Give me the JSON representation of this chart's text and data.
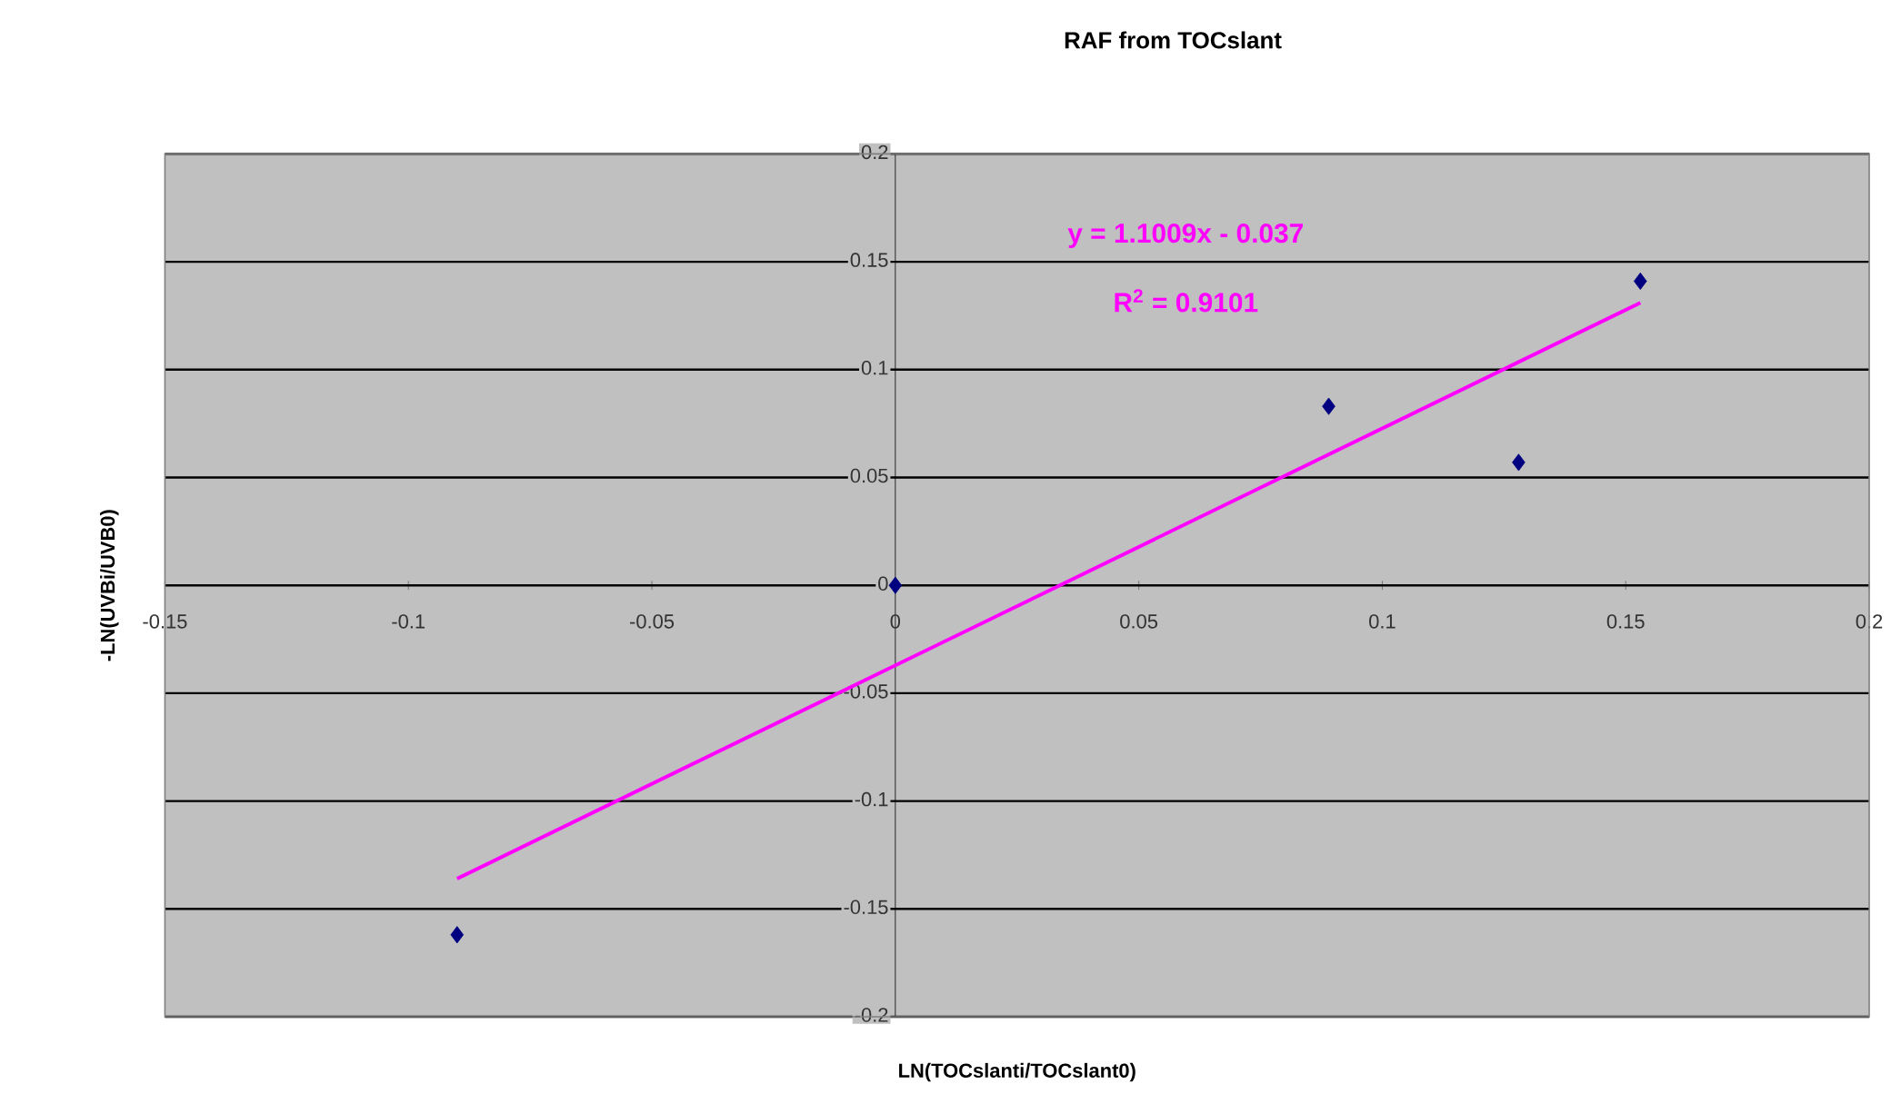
{
  "chart_data": {
    "type": "scatter",
    "title": "RAF from TOCslant",
    "xlabel": "LN(TOCslanti/TOCslant0)",
    "ylabel": "-LN(UVBi/UVB0)",
    "xlim": [
      -0.15,
      0.2
    ],
    "xticks": [
      -0.15,
      -0.1,
      -0.05,
      0,
      0.05,
      0.1,
      0.15,
      0.2
    ],
    "ylim": [
      -0.2,
      0.2
    ],
    "yticks": [
      -0.2,
      -0.15,
      -0.1,
      -0.05,
      0,
      0.05,
      0.1,
      0.15,
      0.2
    ],
    "grid": "y",
    "series": [
      {
        "marker": "diamond",
        "color": "#000080",
        "x": [
          0,
          0.089,
          0.128,
          0.153,
          -0.09
        ],
        "values": [
          0,
          0.083,
          0.057,
          0.141,
          -0.162
        ]
      },
      {
        "type": "line",
        "color": "#ff00ff",
        "x": [
          -0.09,
          0.153
        ],
        "values": [
          -0.136,
          0.131
        ]
      }
    ],
    "annotations": [
      "y = 1.1009x - 0.037",
      "R$^{2}$ = 0.9101"
    ]
  }
}
